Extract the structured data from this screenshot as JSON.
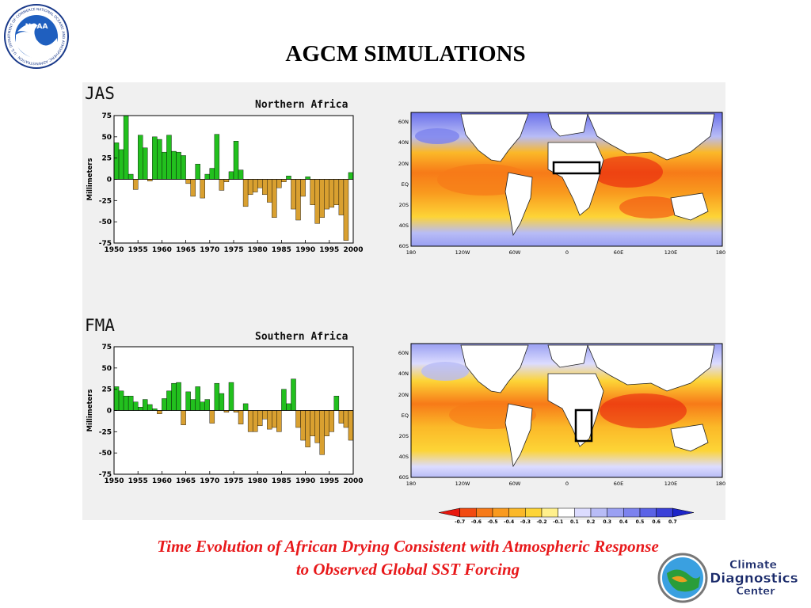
{
  "slide": {
    "title": "AGCM SIMULATIONS",
    "caption_line1": "Time Evolution of African Drying Consistent with Atmospheric Response",
    "caption_line2": "to Observed Global SST Forcing"
  },
  "logos": {
    "noaa": {
      "text": "NOAA",
      "ring_text": "NATIONAL OCEANIC AND ATMOSPHERIC ADMINISTRATION · U.S. DEPARTMENT OF COMMERCE"
    },
    "cdc": {
      "line1": "Climate",
      "line2": "Diagnostics",
      "line3": "Center"
    }
  },
  "panels": {
    "top_season": "JAS",
    "bottom_season": "FMA"
  },
  "colors": {
    "positive_bar": "#22c01e",
    "negative_bar": "#d9a030",
    "bar_edge": "#000000",
    "panel_bg": "#f0f0f0",
    "caption": "#e8191b"
  },
  "chart_data": [
    {
      "type": "bar",
      "title": "Northern Africa",
      "ylabel": "Millimeters",
      "xlabel": "",
      "ylim": [
        -75,
        75
      ],
      "yticks": [
        75,
        50,
        25,
        0,
        -25,
        -50,
        -75
      ],
      "xticks": [
        1950,
        1955,
        1960,
        1965,
        1970,
        1975,
        1980,
        1985,
        1990,
        1995,
        2000
      ],
      "x": [
        1950,
        1951,
        1952,
        1953,
        1954,
        1955,
        1956,
        1957,
        1958,
        1959,
        1960,
        1961,
        1962,
        1963,
        1964,
        1965,
        1966,
        1967,
        1968,
        1969,
        1970,
        1971,
        1972,
        1973,
        1974,
        1975,
        1976,
        1977,
        1978,
        1979,
        1980,
        1981,
        1982,
        1983,
        1984,
        1985,
        1986,
        1987,
        1988,
        1989,
        1990,
        1991,
        1992,
        1993,
        1994,
        1995,
        1996,
        1997,
        1998,
        1999
      ],
      "values": [
        43,
        35,
        75,
        6,
        -12,
        52,
        37,
        -2,
        50,
        47,
        32,
        52,
        33,
        32,
        28,
        -5,
        -20,
        18,
        -22,
        6,
        13,
        53,
        -13,
        -3,
        9,
        45,
        11,
        -32,
        -18,
        -15,
        -10,
        -18,
        -27,
        -45,
        -10,
        -3,
        4,
        -35,
        -48,
        -20,
        3,
        -30,
        -52,
        -45,
        -35,
        -33,
        -30,
        -42,
        -72,
        8
      ]
    },
    {
      "type": "bar",
      "title": "Southern Africa",
      "ylabel": "Millimeters",
      "xlabel": "",
      "ylim": [
        -75,
        75
      ],
      "yticks": [
        75,
        50,
        25,
        0,
        -25,
        -50,
        -75
      ],
      "xticks": [
        1950,
        1955,
        1960,
        1965,
        1970,
        1975,
        1980,
        1985,
        1990,
        1995,
        2000
      ],
      "x": [
        1950,
        1951,
        1952,
        1953,
        1954,
        1955,
        1956,
        1957,
        1958,
        1959,
        1960,
        1961,
        1962,
        1963,
        1964,
        1965,
        1966,
        1967,
        1968,
        1969,
        1970,
        1971,
        1972,
        1973,
        1974,
        1975,
        1976,
        1977,
        1978,
        1979,
        1980,
        1981,
        1982,
        1983,
        1984,
        1985,
        1986,
        1987,
        1988,
        1989,
        1990,
        1991,
        1992,
        1993,
        1994,
        1995,
        1996,
        1997,
        1998,
        1999
      ],
      "values": [
        28,
        23,
        17,
        17,
        10,
        4,
        13,
        7,
        2,
        -4,
        14,
        23,
        32,
        33,
        -17,
        22,
        13,
        28,
        10,
        13,
        -15,
        32,
        20,
        -2,
        33,
        -2,
        -16,
        8,
        -25,
        -25,
        -18,
        -10,
        -22,
        -20,
        -25,
        25,
        8,
        37,
        -20,
        -35,
        -43,
        -30,
        -38,
        -52,
        -30,
        -25,
        17,
        -15,
        -20,
        -35
      ]
    }
  ],
  "maps": {
    "ylabels": [
      "60N",
      "40N",
      "20N",
      "EQ",
      "20S",
      "40S",
      "60S"
    ],
    "xlabels": [
      "180",
      "120W",
      "60W",
      "0",
      "60E",
      "120E",
      "180"
    ]
  },
  "colorbar": {
    "labels": [
      "-0.7",
      "-0.6",
      "-0.5",
      "-0.4",
      "-0.3",
      "-0.2",
      "-0.1",
      "0.1",
      "0.2",
      "0.3",
      "0.4",
      "0.5",
      "0.6",
      "0.7"
    ],
    "colors": [
      "#e8160c",
      "#f24a10",
      "#f77a18",
      "#f99a1e",
      "#fbb828",
      "#fdd436",
      "#fff08c",
      "#ffffff",
      "#dcdcff",
      "#b8bcf6",
      "#9aa0f2",
      "#7c82ee",
      "#5a62e6",
      "#3a40d8",
      "#1c24c8"
    ]
  }
}
